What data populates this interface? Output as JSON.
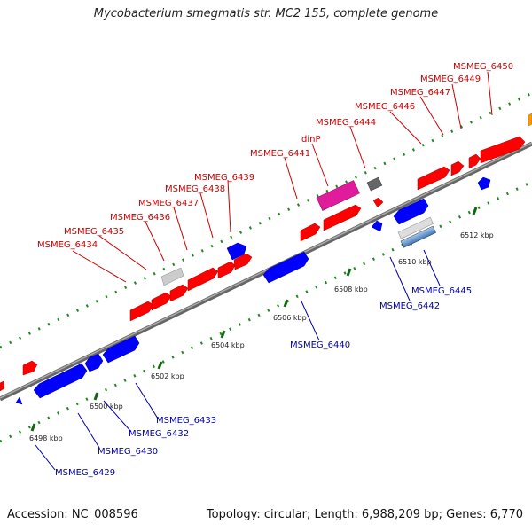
{
  "title": "Mycobacterium smegmatis str. MC2 155, complete genome",
  "footer": {
    "accession": "Accession: NC_008596",
    "summary": "Topology: circular; Length: 6,988,209 bp; Genes: 6,770"
  },
  "colors": {
    "forward_gene": "#ff0000",
    "reverse_gene": "#0000ff",
    "label_forward": "#cc0000",
    "label_reverse": "#0000aa",
    "backbone": "#888888",
    "tick": "#228822",
    "pseudo_gene": "#cccccc",
    "dinP": "#e01c9c",
    "grey_gene": "#666666",
    "orange_gene": "#ff9900",
    "light_blue_gene": "#6aa0d0"
  },
  "ticks": [
    "6498 kbp",
    "6500 kbp",
    "6502 kbp",
    "6504 kbp",
    "6506 kbp",
    "6508 kbp",
    "6510 kbp",
    "6512 kbp"
  ],
  "genes_top": [
    "MSMEG_6434",
    "MSMEG_6435",
    "MSMEG_6436",
    "MSMEG_6437",
    "MSMEG_6438",
    "MSMEG_6439",
    "MSMEG_6441",
    "dinP",
    "MSMEG_6444",
    "MSMEG_6446",
    "MSMEG_6447",
    "MSMEG_6449",
    "MSMEG_6450"
  ],
  "genes_bottom": [
    "MSMEG_6429",
    "MSMEG_6430",
    "MSMEG_6432",
    "MSMEG_6433",
    "MSMEG_6440",
    "MSMEG_6442",
    "MSMEG_6445"
  ]
}
